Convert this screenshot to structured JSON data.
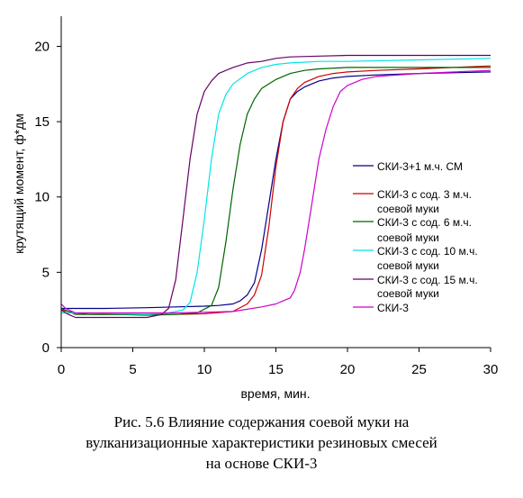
{
  "chart_data": {
    "type": "line",
    "xlabel": "время, мин.",
    "ylabel": "крутящий момент, ф*дм",
    "xlim": [
      0,
      30
    ],
    "ylim": [
      0,
      22
    ],
    "xticks": [
      "0",
      "5",
      "10",
      "15",
      "20",
      "25",
      "30"
    ],
    "yticks": [
      "0",
      "5",
      "10",
      "15",
      "20"
    ],
    "grid": false,
    "legend_position": "right",
    "series": [
      {
        "name": "СКИ-3+1 м.ч. СМ",
        "legend_lines": [
          "СКИ-3+1 м.ч. СМ"
        ],
        "color": "#00008b",
        "x": [
          0,
          1,
          3,
          6,
          8,
          10,
          11,
          12,
          12.5,
          13,
          13.5,
          14,
          14.5,
          15,
          15.5,
          16,
          16.5,
          17,
          18,
          19,
          20,
          22,
          25,
          30
        ],
        "y": [
          2.6,
          2.6,
          2.6,
          2.65,
          2.7,
          2.75,
          2.8,
          2.9,
          3.1,
          3.5,
          4.3,
          6.5,
          9.5,
          12.5,
          15.0,
          16.5,
          17.0,
          17.3,
          17.7,
          17.9,
          18.0,
          18.1,
          18.2,
          18.3
        ]
      },
      {
        "name": "СКИ-3 с сод. 3 м.ч. соевой муки",
        "legend_lines": [
          "СКИ-3 с сод. 3 м.ч.",
          "соевой муки"
        ],
        "color": "#cc0000",
        "x": [
          0,
          1,
          2,
          4,
          6,
          8,
          10,
          12,
          13,
          13.5,
          14,
          14.5,
          15,
          15.5,
          16,
          16.5,
          17,
          18,
          19,
          20,
          22,
          25,
          30
        ],
        "y": [
          2.5,
          2.3,
          2.2,
          2.2,
          2.2,
          2.2,
          2.25,
          2.4,
          2.9,
          3.5,
          4.8,
          8.0,
          12.0,
          15.0,
          16.5,
          17.2,
          17.6,
          18.0,
          18.2,
          18.3,
          18.4,
          18.5,
          18.7
        ]
      },
      {
        "name": "СКИ-3 с сод. 6 м.ч. соевой муки",
        "legend_lines": [
          "СКИ-3 с сод. 6 м.ч.",
          "соевой муки"
        ],
        "color": "#006400",
        "x": [
          0,
          1,
          2,
          4,
          6,
          8,
          9.5,
          10.5,
          11,
          11.5,
          12,
          12.5,
          13,
          13.5,
          14,
          15,
          16,
          17,
          18,
          20,
          22,
          25,
          30
        ],
        "y": [
          2.6,
          2.2,
          2.2,
          2.2,
          2.15,
          2.2,
          2.3,
          2.8,
          4.0,
          7.0,
          10.5,
          13.5,
          15.5,
          16.5,
          17.2,
          17.8,
          18.2,
          18.4,
          18.5,
          18.6,
          18.6,
          18.6,
          18.6
        ]
      },
      {
        "name": "СКИ-3 с сод. 10 м.ч. соевой муки",
        "legend_lines": [
          "СКИ-3 с сод. 10 м.ч.",
          "соевой муки"
        ],
        "color": "#00e5e5",
        "x": [
          0,
          1,
          2,
          4,
          6,
          7.5,
          8.5,
          9,
          9.5,
          10,
          10.5,
          11,
          11.5,
          12,
          13,
          14,
          15,
          16,
          18,
          20,
          25,
          30
        ],
        "y": [
          2.3,
          2.3,
          2.3,
          2.25,
          2.2,
          2.3,
          2.5,
          3.0,
          5.0,
          8.5,
          12.5,
          15.5,
          16.8,
          17.5,
          18.2,
          18.6,
          18.8,
          18.9,
          19.0,
          19.0,
          19.1,
          19.2
        ]
      },
      {
        "name": "СКИ-3 с сод. 15 м.ч. соевой муки",
        "legend_lines": [
          "СКИ-3 с сод. 15 м.ч.",
          "соевой муки"
        ],
        "color": "#660066",
        "x": [
          0,
          0.5,
          1,
          2,
          4,
          6,
          7,
          7.5,
          8,
          8.5,
          9,
          9.5,
          10,
          10.5,
          11,
          12,
          13,
          14,
          15,
          16,
          18,
          20,
          25,
          30
        ],
        "y": [
          2.5,
          2.2,
          2.0,
          2.0,
          2.0,
          2.0,
          2.2,
          2.6,
          4.5,
          8.5,
          12.5,
          15.5,
          17.0,
          17.7,
          18.2,
          18.6,
          18.9,
          19.0,
          19.2,
          19.3,
          19.35,
          19.4,
          19.4,
          19.4
        ]
      },
      {
        "name": "СКИ-3",
        "legend_lines": [
          "СКИ-3"
        ],
        "color": "#cc00cc",
        "x": [
          0,
          0.3,
          1,
          2,
          4,
          6,
          8,
          10,
          12,
          14,
          15,
          15.5,
          16,
          16.3,
          16.7,
          17,
          17.5,
          18,
          18.5,
          19,
          19.5,
          20,
          21,
          22,
          25,
          30
        ],
        "y": [
          2.9,
          2.6,
          2.3,
          2.3,
          2.3,
          2.3,
          2.3,
          2.35,
          2.4,
          2.7,
          2.9,
          3.1,
          3.3,
          3.8,
          5.0,
          6.5,
          9.5,
          12.5,
          14.5,
          16.0,
          17.0,
          17.4,
          17.8,
          18.0,
          18.2,
          18.4
        ]
      }
    ]
  },
  "caption": {
    "line1": "Рис. 5.6 Влияние содержания соевой муки на",
    "line2": "вулканизационные характеристики резиновых смесей",
    "line3": "на основе СКИ-3"
  }
}
